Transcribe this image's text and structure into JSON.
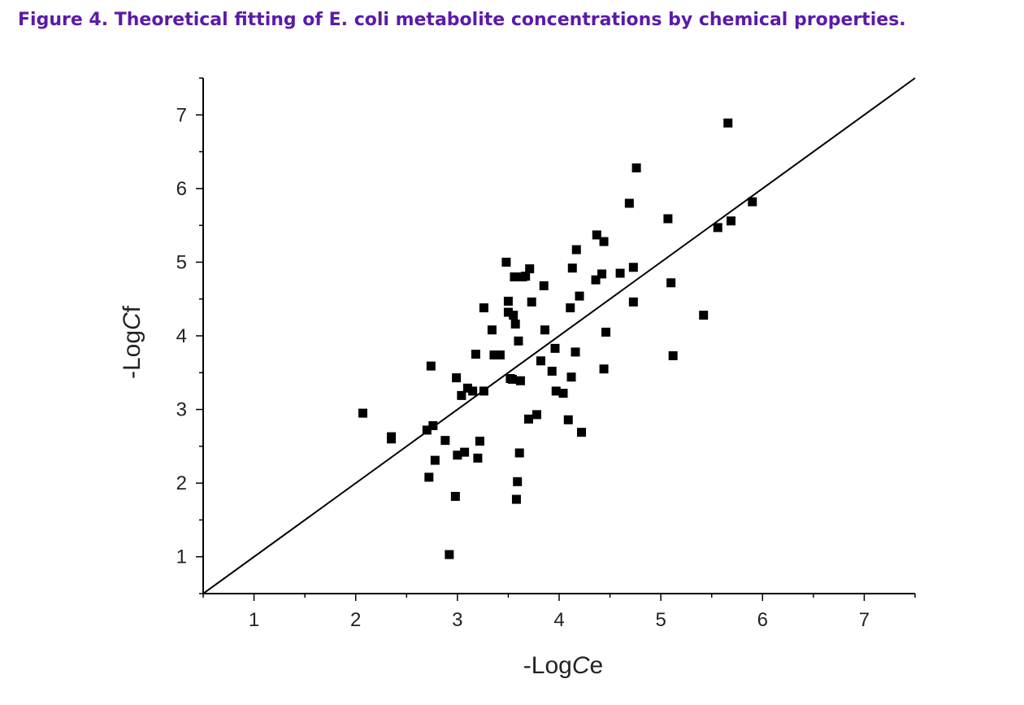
{
  "title": "Figure 4. Theoretical fitting of E. coli metabolite concentrations by chemical properties.",
  "colors": {
    "title": "#5b1aa8",
    "ink": "#000000"
  },
  "chart_data": {
    "type": "scatter",
    "title": "Figure 4. Theoretical fitting of E. coli metabolite concentrations by chemical properties.",
    "xlabel": {
      "prefix": "-Log",
      "italic": "C",
      "suffix": "e"
    },
    "ylabel": {
      "prefix": "-Log",
      "italic": "C",
      "suffix": "f"
    },
    "xlim": [
      0.5,
      7.5
    ],
    "ylim": [
      0.5,
      7.5
    ],
    "xticks": [
      "1",
      "2",
      "3",
      "4",
      "5",
      "6",
      "7"
    ],
    "yticks": [
      "1",
      "2",
      "3",
      "4",
      "5",
      "6",
      "7"
    ],
    "grid": false,
    "legend": "none",
    "fit_line": {
      "x": [
        0.5,
        7.5
      ],
      "y": [
        0.5,
        7.5
      ]
    },
    "points": [
      [
        2.07,
        2.95
      ],
      [
        2.35,
        2.6
      ],
      [
        2.35,
        2.63
      ],
      [
        2.7,
        2.72
      ],
      [
        2.74,
        3.59
      ],
      [
        2.72,
        2.08
      ],
      [
        2.76,
        2.78
      ],
      [
        2.78,
        2.31
      ],
      [
        2.88,
        2.58
      ],
      [
        2.92,
        1.03
      ],
      [
        2.98,
        1.82
      ],
      [
        2.99,
        3.43
      ],
      [
        3.0,
        2.38
      ],
      [
        3.04,
        3.19
      ],
      [
        3.07,
        2.42
      ],
      [
        3.1,
        3.29
      ],
      [
        3.15,
        3.25
      ],
      [
        3.18,
        3.75
      ],
      [
        3.2,
        2.34
      ],
      [
        3.22,
        2.57
      ],
      [
        3.26,
        4.38
      ],
      [
        3.26,
        3.25
      ],
      [
        3.34,
        4.08
      ],
      [
        3.36,
        3.74
      ],
      [
        3.42,
        3.74
      ],
      [
        3.48,
        5.0
      ],
      [
        3.5,
        4.47
      ],
      [
        3.5,
        4.32
      ],
      [
        3.52,
        3.42
      ],
      [
        3.54,
        3.41
      ],
      [
        3.55,
        4.28
      ],
      [
        3.56,
        4.8
      ],
      [
        3.57,
        4.16
      ],
      [
        3.58,
        1.78
      ],
      [
        3.59,
        2.02
      ],
      [
        3.6,
        3.93
      ],
      [
        3.61,
        2.41
      ],
      [
        3.62,
        3.39
      ],
      [
        3.64,
        4.8
      ],
      [
        3.67,
        4.81
      ],
      [
        3.7,
        2.87
      ],
      [
        3.71,
        4.91
      ],
      [
        3.73,
        4.46
      ],
      [
        3.78,
        2.93
      ],
      [
        3.82,
        3.66
      ],
      [
        3.85,
        4.68
      ],
      [
        3.86,
        4.08
      ],
      [
        3.93,
        3.52
      ],
      [
        3.96,
        3.83
      ],
      [
        3.97,
        3.25
      ],
      [
        4.04,
        3.22
      ],
      [
        4.09,
        2.86
      ],
      [
        4.11,
        4.38
      ],
      [
        4.12,
        3.44
      ],
      [
        4.13,
        4.92
      ],
      [
        4.16,
        3.78
      ],
      [
        4.17,
        5.17
      ],
      [
        4.2,
        4.54
      ],
      [
        4.22,
        2.69
      ],
      [
        4.36,
        4.76
      ],
      [
        4.37,
        5.37
      ],
      [
        4.42,
        4.84
      ],
      [
        4.44,
        5.28
      ],
      [
        4.44,
        3.55
      ],
      [
        4.46,
        4.05
      ],
      [
        4.6,
        4.85
      ],
      [
        4.69,
        5.8
      ],
      [
        4.73,
        4.93
      ],
      [
        4.73,
        4.46
      ],
      [
        4.76,
        6.28
      ],
      [
        5.07,
        5.59
      ],
      [
        5.1,
        4.72
      ],
      [
        5.12,
        3.73
      ],
      [
        5.42,
        4.28
      ],
      [
        5.56,
        5.47
      ],
      [
        5.66,
        6.89
      ],
      [
        5.69,
        5.56
      ],
      [
        5.9,
        5.82
      ]
    ]
  }
}
